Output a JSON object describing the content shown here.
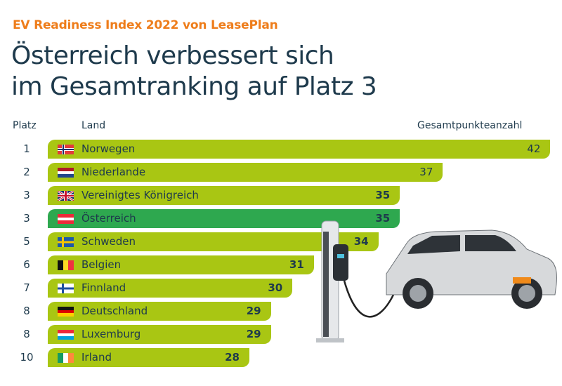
{
  "kicker": "EV Readiness Index 2022 von LeasePlan",
  "title_line1": "Österreich verbessert sich",
  "title_line2": "im Gesamtranking auf Platz 3",
  "colors": {
    "bar": "#a9c613",
    "highlight": "#2ea84f",
    "kicker": "#ee7d1b",
    "text": "#1e3a4c"
  },
  "chart_data": {
    "type": "bar",
    "orientation": "horizontal",
    "column_headers": {
      "rank": "Platz",
      "country": "Land",
      "score": "Gesamtpunkteanzahl"
    },
    "rows": [
      {
        "rank": "1",
        "country": "Norwegen",
        "flag": "norway",
        "value": 42,
        "highlight": false
      },
      {
        "rank": "2",
        "country": "Niederlande",
        "flag": "netherlands",
        "value": 37,
        "highlight": false
      },
      {
        "rank": "3",
        "country": "Vereinigtes Königreich",
        "flag": "uk",
        "value": 35,
        "highlight": false
      },
      {
        "rank": "3",
        "country": "Österreich",
        "flag": "austria",
        "value": 35,
        "highlight": true
      },
      {
        "rank": "5",
        "country": "Schweden",
        "flag": "sweden",
        "value": 34,
        "highlight": false
      },
      {
        "rank": "6",
        "country": "Belgien",
        "flag": "belgium",
        "value": 31,
        "highlight": false
      },
      {
        "rank": "7",
        "country": "Finnland",
        "flag": "finland",
        "value": 30,
        "highlight": false
      },
      {
        "rank": "8",
        "country": "Deutschland",
        "flag": "germany",
        "value": 29,
        "highlight": false
      },
      {
        "rank": "8",
        "country": "Luxemburg",
        "flag": "luxembourg",
        "value": 29,
        "highlight": false
      },
      {
        "rank": "10",
        "country": "Irland",
        "flag": "ireland",
        "value": 28,
        "highlight": false
      }
    ]
  }
}
